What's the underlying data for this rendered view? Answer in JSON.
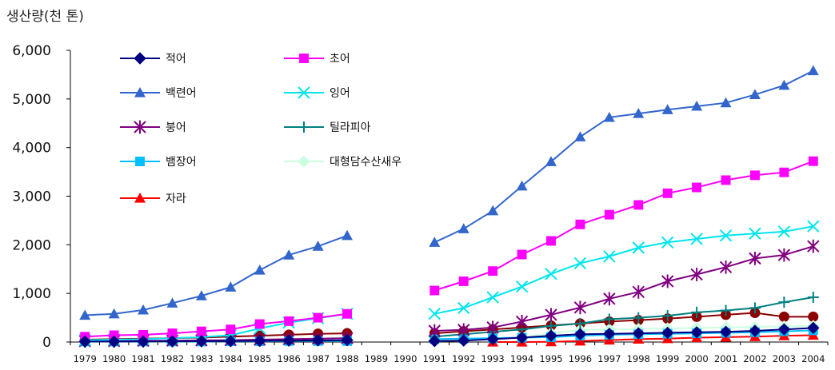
{
  "chart_data": {
    "type": "line",
    "ylabel": "생산량(천 톤)",
    "ylim": [
      0,
      6000
    ],
    "yticks": [
      "0",
      "1,000",
      "2,000",
      "3,000",
      "4,000",
      "5,000",
      "6,000"
    ],
    "ytick_values": [
      0,
      1000,
      2000,
      3000,
      4000,
      5000,
      6000
    ],
    "categories": [
      "1979",
      "1980",
      "1981",
      "1982",
      "1983",
      "1984",
      "1985",
      "1986",
      "1987",
      "1988",
      "1989",
      "1990",
      "1991",
      "1992",
      "1993",
      "1994",
      "1995",
      "1996",
      "1997",
      "1998",
      "1999",
      "2000",
      "2001",
      "2002",
      "2003",
      "2004"
    ],
    "grid": false,
    "legend": "top-left",
    "series": [
      {
        "name": "적어",
        "color": "#000080",
        "marker": "diamond",
        "values": [
          10,
          10,
          12,
          15,
          18,
          20,
          25,
          30,
          35,
          40,
          null,
          null,
          20,
          30,
          60,
          90,
          130,
          160,
          170,
          180,
          190,
          200,
          210,
          230,
          260,
          290
        ]
      },
      {
        "name": "초어",
        "color": "#ff00ff",
        "marker": "square",
        "values": [
          110,
          140,
          150,
          180,
          220,
          260,
          370,
          430,
          500,
          580,
          null,
          null,
          1060,
          1250,
          1460,
          1800,
          2080,
          2420,
          2620,
          2820,
          3060,
          3180,
          3330,
          3430,
          3490,
          3720
        ]
      },
      {
        "name": "백련어",
        "color": "#3366cc",
        "marker": "triangle",
        "values": [
          550,
          580,
          660,
          800,
          950,
          1130,
          1480,
          1790,
          1970,
          2190,
          null,
          null,
          2050,
          2330,
          2700,
          3210,
          3710,
          4220,
          4620,
          4700,
          4780,
          4850,
          4920,
          5090,
          5280,
          5580
        ]
      },
      {
        "name": "잉어",
        "color": "#00e5ee",
        "marker": "x",
        "values": [
          40,
          50,
          60,
          80,
          100,
          140,
          280,
          400,
          490,
          580,
          null,
          null,
          580,
          700,
          920,
          1140,
          1400,
          1620,
          1760,
          1940,
          2050,
          2120,
          2190,
          2230,
          2270,
          2380
        ]
      },
      {
        "name": "붕어",
        "color": "#800080",
        "marker": "star",
        "values": [
          20,
          20,
          25,
          30,
          35,
          40,
          50,
          60,
          70,
          80,
          null,
          null,
          230,
          250,
          300,
          420,
          560,
          710,
          890,
          1030,
          1250,
          1390,
          1540,
          1720,
          1790,
          1970
        ]
      },
      {
        "name": "틸라피아",
        "color": "#008080",
        "marker": "plus",
        "values": [
          10,
          10,
          10,
          12,
          15,
          18,
          20,
          25,
          30,
          35,
          null,
          null,
          110,
          160,
          210,
          260,
          330,
          380,
          470,
          500,
          540,
          610,
          650,
          700,
          820,
          920
        ]
      },
      {
        "name": "뱀장어",
        "color": "#00bfff",
        "marker": "square",
        "values": [
          10,
          10,
          10,
          10,
          10,
          15,
          15,
          20,
          20,
          20,
          null,
          null,
          60,
          70,
          80,
          90,
          100,
          130,
          150,
          160,
          170,
          180,
          190,
          200,
          220,
          240
        ]
      },
      {
        "name": "대형담수산새우",
        "color": "#ccffe0",
        "marker": "diamond",
        "values": [
          null,
          null,
          null,
          null,
          null,
          null,
          null,
          null,
          null,
          null,
          null,
          null,
          20,
          30,
          60,
          100,
          180,
          250,
          260,
          270,
          280,
          290,
          300,
          310,
          320,
          330
        ]
      },
      {
        "name": "자라",
        "color": "#ff0000",
        "marker": "triangle",
        "values": [
          null,
          null,
          null,
          null,
          null,
          null,
          null,
          null,
          null,
          null,
          null,
          null,
          null,
          null,
          0,
          0,
          5,
          20,
          40,
          60,
          70,
          90,
          100,
          110,
          130,
          140
        ]
      },
      {
        "name": "",
        "color": "#8b0000",
        "marker": "circle",
        "in_legend": false,
        "values": [
          50,
          60,
          70,
          80,
          90,
          110,
          130,
          150,
          170,
          180,
          null,
          null,
          180,
          220,
          260,
          300,
          340,
          380,
          420,
          450,
          480,
          520,
          560,
          600,
          520,
          520
        ]
      }
    ]
  }
}
